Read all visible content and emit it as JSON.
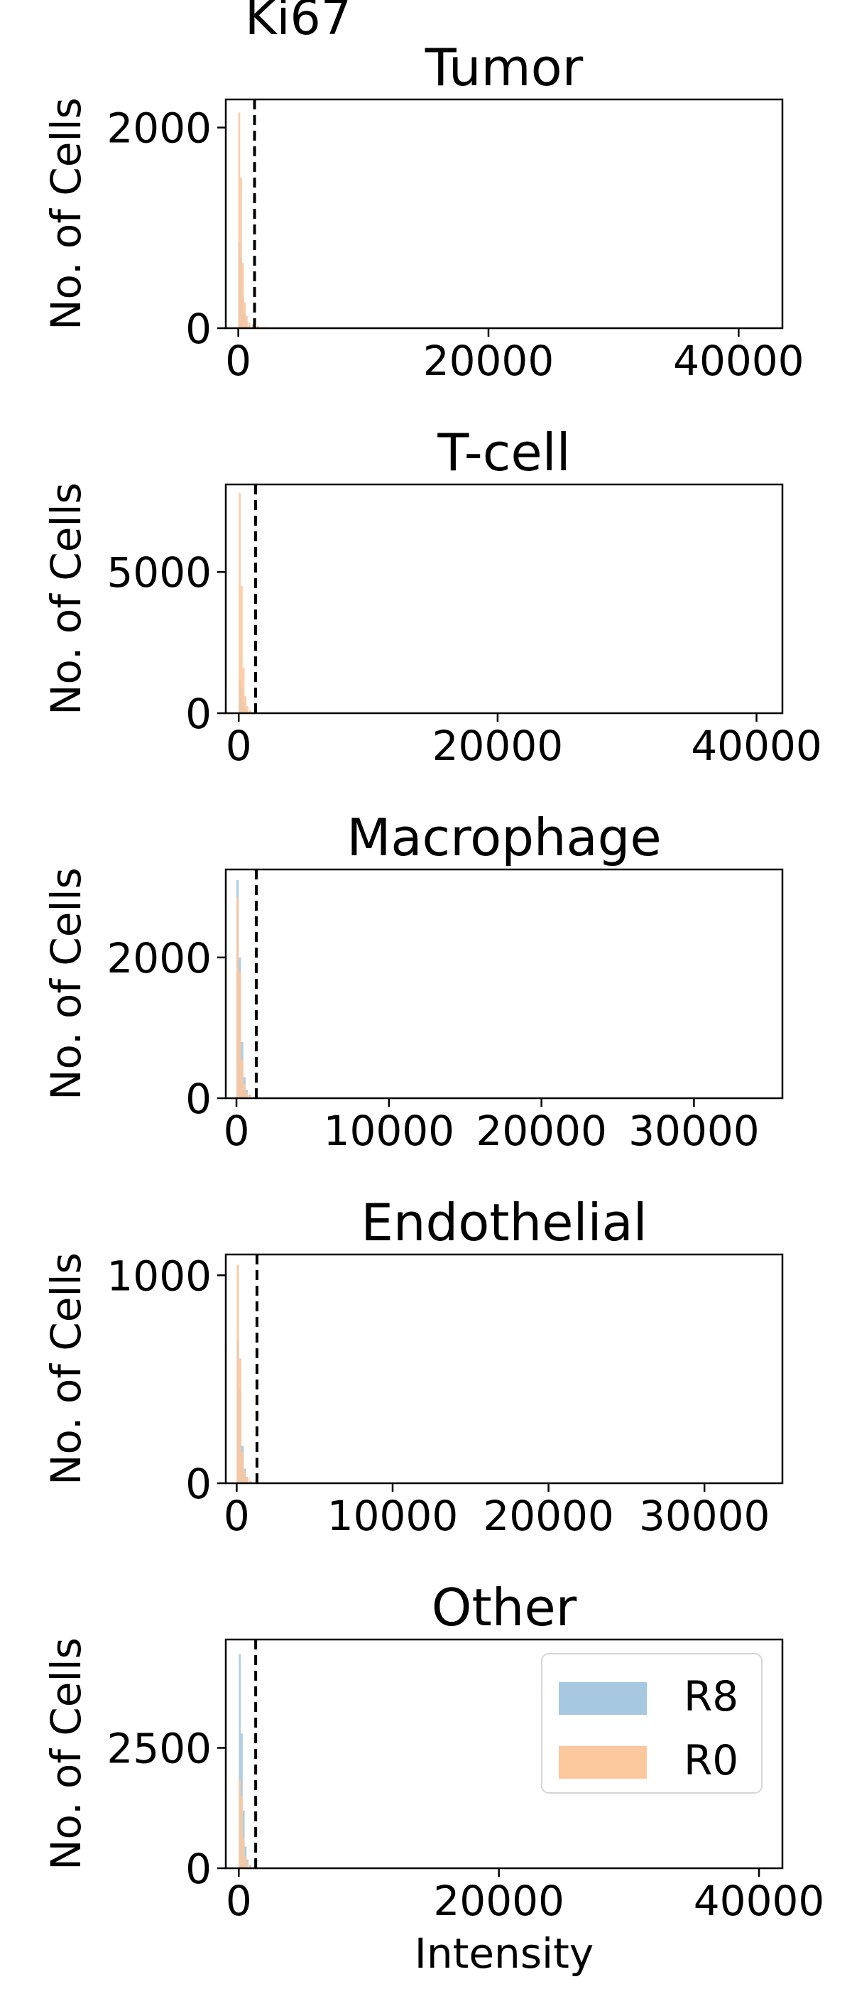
{
  "figure": {
    "title": "Ki67"
  },
  "legend": {
    "placement": "upper right of last panel",
    "items": [
      {
        "label": "R8",
        "color": "#a6c8e0"
      },
      {
        "label": "R0",
        "color": "#fcc89e"
      }
    ]
  },
  "chart_data": [
    {
      "type": "histogram",
      "title": "Tumor",
      "xlabel": "",
      "ylabel": "No. of Cells",
      "xlim": [
        -1000,
        43500
      ],
      "ylim": [
        0,
        2280
      ],
      "xticks": [
        0,
        20000,
        40000
      ],
      "yticks": [
        0,
        2000
      ],
      "threshold": 1300,
      "series": [
        {
          "name": "R8",
          "bins": [
            [
              0,
              850
            ],
            [
              150,
              700
            ],
            [
              300,
              320
            ],
            [
              450,
              150
            ],
            [
              600,
              70
            ],
            [
              800,
              35
            ],
            [
              1100,
              15
            ],
            [
              1500,
              8
            ],
            [
              2000,
              4
            ],
            [
              2600,
              2
            ]
          ]
        },
        {
          "name": "R0",
          "bins": [
            [
              0,
              2150
            ],
            [
              150,
              1500
            ],
            [
              300,
              650
            ],
            [
              450,
              260
            ],
            [
              600,
              120
            ],
            [
              800,
              60
            ],
            [
              1100,
              40
            ],
            [
              1500,
              22
            ],
            [
              2000,
              10
            ],
            [
              2600,
              4
            ]
          ]
        }
      ]
    },
    {
      "type": "histogram",
      "title": "T-cell",
      "xlabel": "",
      "ylabel": "No. of Cells",
      "xlim": [
        -1000,
        42000
      ],
      "ylim": [
        0,
        8100
      ],
      "xticks": [
        0,
        20000,
        40000
      ],
      "yticks": [
        0,
        5000
      ],
      "threshold": 1300,
      "series": [
        {
          "name": "R8",
          "bins": [
            [
              0,
              1200
            ],
            [
              150,
              900
            ],
            [
              300,
              400
            ],
            [
              450,
              160
            ],
            [
              600,
              70
            ],
            [
              800,
              30
            ],
            [
              1100,
              12
            ],
            [
              1500,
              5
            ]
          ]
        },
        {
          "name": "R0",
          "bins": [
            [
              0,
              7800
            ],
            [
              150,
              4500
            ],
            [
              300,
              1600
            ],
            [
              450,
              600
            ],
            [
              600,
              250
            ],
            [
              800,
              100
            ],
            [
              1100,
              40
            ],
            [
              1500,
              15
            ]
          ]
        }
      ]
    },
    {
      "type": "histogram",
      "title": "Macrophage",
      "xlabel": "",
      "ylabel": "No. of Cells",
      "xlim": [
        -700,
        35800
      ],
      "ylim": [
        0,
        3250
      ],
      "xticks": [
        0,
        10000,
        20000,
        30000
      ],
      "yticks": [
        0,
        2000
      ],
      "threshold": 1300,
      "series": [
        {
          "name": "R8",
          "bins": [
            [
              0,
              3100
            ],
            [
              150,
              2000
            ],
            [
              300,
              800
            ],
            [
              450,
              300
            ],
            [
              600,
              120
            ],
            [
              800,
              50
            ],
            [
              1100,
              20
            ],
            [
              1500,
              8
            ]
          ]
        },
        {
          "name": "R0",
          "bins": [
            [
              0,
              2850
            ],
            [
              150,
              1800
            ],
            [
              300,
              550
            ],
            [
              450,
              200
            ],
            [
              600,
              80
            ],
            [
              800,
              35
            ],
            [
              1100,
              14
            ],
            [
              1500,
              6
            ]
          ]
        }
      ]
    },
    {
      "type": "histogram",
      "title": "Endothelial",
      "xlabel": "",
      "ylabel": "No. of Cells",
      "xlim": [
        -700,
        35000
      ],
      "ylim": [
        0,
        1100
      ],
      "xticks": [
        0,
        10000,
        20000,
        30000
      ],
      "yticks": [
        0,
        1000
      ],
      "threshold": 1300,
      "series": [
        {
          "name": "R8",
          "bins": [
            [
              0,
              700
            ],
            [
              150,
              450
            ],
            [
              300,
              180
            ],
            [
              450,
              70
            ],
            [
              600,
              30
            ],
            [
              800,
              12
            ],
            [
              1100,
              5
            ]
          ]
        },
        {
          "name": "R0",
          "bins": [
            [
              0,
              1050
            ],
            [
              150,
              600
            ],
            [
              300,
              150
            ],
            [
              450,
              60
            ],
            [
              600,
              25
            ],
            [
              800,
              10
            ],
            [
              1100,
              4
            ]
          ]
        }
      ]
    },
    {
      "type": "histogram",
      "title": "Other",
      "xlabel": "Intensity",
      "ylabel": "No. of Cells",
      "xlim": [
        -1000,
        41800
      ],
      "ylim": [
        0,
        4750
      ],
      "xticks": [
        0,
        20000,
        40000
      ],
      "yticks": [
        0,
        2500
      ],
      "threshold": 1300,
      "series": [
        {
          "name": "R8",
          "bins": [
            [
              0,
              4450
            ],
            [
              150,
              2800
            ],
            [
              300,
              1200
            ],
            [
              450,
              450
            ],
            [
              600,
              180
            ],
            [
              800,
              70
            ],
            [
              1100,
              25
            ],
            [
              1500,
              10
            ]
          ]
        },
        {
          "name": "R0",
          "bins": [
            [
              0,
              1850
            ],
            [
              150,
              1500
            ],
            [
              300,
              650
            ],
            [
              450,
              250
            ],
            [
              600,
              100
            ],
            [
              800,
              40
            ],
            [
              1100,
              15
            ],
            [
              1500,
              6
            ]
          ]
        }
      ]
    }
  ]
}
